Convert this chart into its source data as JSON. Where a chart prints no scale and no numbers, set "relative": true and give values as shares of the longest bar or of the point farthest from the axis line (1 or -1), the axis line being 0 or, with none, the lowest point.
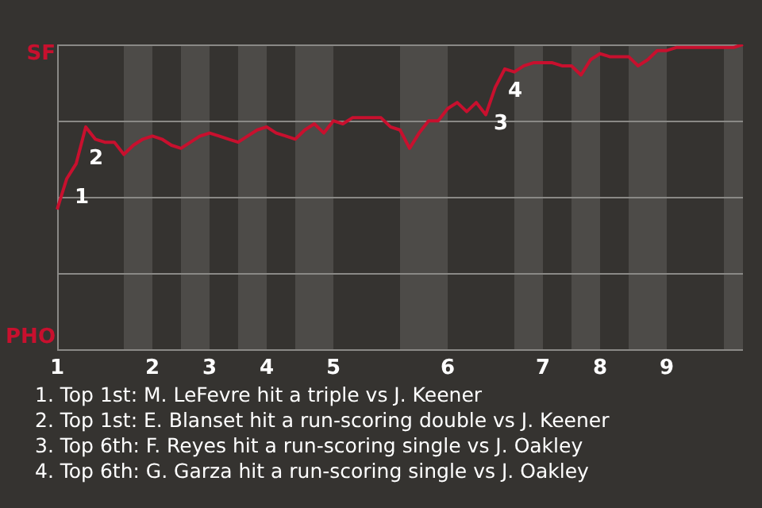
{
  "chart_data": {
    "type": "line",
    "relative": true,
    "categories": [
      "1",
      null,
      null,
      null,
      null,
      null,
      null,
      null,
      null,
      null,
      "2",
      null,
      null,
      null,
      null,
      null,
      "3",
      null,
      null,
      null,
      null,
      null,
      "4",
      null,
      null,
      null,
      null,
      null,
      null,
      "5",
      null,
      null,
      null,
      null,
      null,
      null,
      null,
      null,
      null,
      null,
      null,
      "6",
      null,
      null,
      null,
      null,
      null,
      null,
      null,
      null,
      null,
      "7",
      null,
      null,
      null,
      null,
      null,
      "8",
      null,
      null,
      null,
      null,
      null,
      null,
      "9",
      null,
      null,
      null,
      null,
      null,
      null,
      null,
      null
    ],
    "series": [
      {
        "color": "#c8102e",
        "values": [
          0.46,
          0.56,
          0.61,
          0.73,
          0.69,
          0.68,
          0.68,
          0.64,
          0.67,
          0.69,
          0.7,
          0.69,
          0.67,
          0.66,
          0.68,
          0.7,
          0.71,
          0.7,
          0.69,
          0.68,
          0.7,
          0.72,
          0.73,
          0.71,
          0.7,
          0.69,
          0.72,
          0.74,
          0.71,
          0.75,
          0.74,
          0.76,
          0.76,
          0.76,
          0.76,
          0.73,
          0.72,
          0.66,
          0.71,
          0.75,
          0.75,
          0.79,
          0.81,
          0.78,
          0.81,
          0.77,
          0.86,
          0.92,
          0.91,
          0.93,
          0.94,
          0.94,
          0.94,
          0.93,
          0.93,
          0.9,
          0.95,
          0.97,
          0.96,
          0.96,
          0.96,
          0.93,
          0.95,
          0.98,
          0.98,
          0.99,
          0.99,
          0.99,
          0.99,
          0.99,
          0.99,
          0.99,
          1
        ]
      }
    ],
    "grid": true,
    "legend": false,
    "marker": "none",
    "line_style": "solid",
    "annotations": [
      "SF",
      "PHO",
      "1",
      "2",
      "3",
      "4",
      "1. Top 1st: M. LeFevre hit a triple vs J. Keener",
      "2. Top 1st: E. Blanset hit a run-scoring double vs J. Keener",
      "3. Top 6th: F. Reyes hit a run-scoring single vs J. Oakley",
      "4. Top 6th: G. Garza hit a run-scoring single vs J. Oakley"
    ]
  }
}
